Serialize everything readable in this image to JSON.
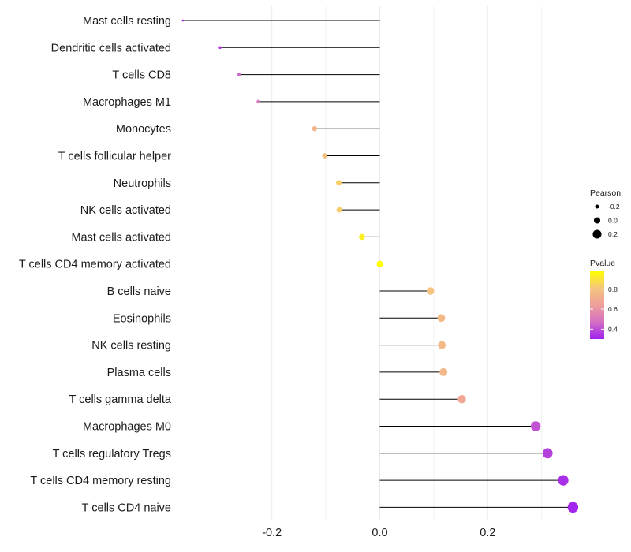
{
  "chart_data": {
    "type": "lollipop",
    "title": "",
    "xlabel": "",
    "ylabel": "",
    "xlim": [
      -0.375,
      0.375
    ],
    "x_ticks": [
      -0.2,
      0.0,
      0.2
    ],
    "x_tick_labels": [
      "-0.2",
      "0.0",
      "0.2"
    ],
    "grid": true,
    "legend_position": "right",
    "points": [
      {
        "label": "Mast cells resting",
        "value": -0.365,
        "pvalue": 0.3
      },
      {
        "label": "Dendritic cells activated",
        "value": -0.296,
        "pvalue": 0.36
      },
      {
        "label": "T cells CD8",
        "value": -0.261,
        "pvalue": 0.45
      },
      {
        "label": "Macrophages M1",
        "value": -0.225,
        "pvalue": 0.5
      },
      {
        "label": "Monocytes",
        "value": -0.121,
        "pvalue": 0.74
      },
      {
        "label": "T cells follicular helper",
        "value": -0.102,
        "pvalue": 0.79
      },
      {
        "label": "Neutrophils",
        "value": -0.076,
        "pvalue": 0.84
      },
      {
        "label": "NK cells activated",
        "value": -0.075,
        "pvalue": 0.84
      },
      {
        "label": "Mast cells activated",
        "value": -0.033,
        "pvalue": 0.93
      },
      {
        "label": "T cells CD4 memory activated",
        "value": 0.0,
        "pvalue": 0.99
      },
      {
        "label": "B cells naive",
        "value": 0.094,
        "pvalue": 0.8
      },
      {
        "label": "Eosinophils",
        "value": 0.114,
        "pvalue": 0.76
      },
      {
        "label": "NK cells resting",
        "value": 0.115,
        "pvalue": 0.76
      },
      {
        "label": "Plasma cells",
        "value": 0.118,
        "pvalue": 0.75
      },
      {
        "label": "T cells gamma delta",
        "value": 0.152,
        "pvalue": 0.68
      },
      {
        "label": "Macrophages M0",
        "value": 0.289,
        "pvalue": 0.41
      },
      {
        "label": "T cells regulatory  Tregs ",
        "value": 0.311,
        "pvalue": 0.37
      },
      {
        "label": "T cells CD4 memory resting",
        "value": 0.34,
        "pvalue": 0.33
      },
      {
        "label": "T cells CD4 naive",
        "value": 0.358,
        "pvalue": 0.31
      }
    ],
    "legend_size": {
      "title": "Pearson",
      "entries": [
        {
          "label": "-0.2",
          "value": -0.2
        },
        {
          "label": "0.0",
          "value": 0.0
        },
        {
          "label": "0.2",
          "value": 0.2
        }
      ]
    },
    "legend_color": {
      "title": "Pvalue",
      "range": [
        0.3,
        0.98
      ],
      "ticks": [
        {
          "label": "0.8",
          "value": 0.8
        },
        {
          "label": "0.6",
          "value": 0.6
        },
        {
          "label": "0.4",
          "value": 0.4
        }
      ],
      "colors": [
        "#A020F0",
        "#D36FC3",
        "#EF9E9C",
        "#F5C47E",
        "#FFFF00"
      ]
    },
    "line_color": "#000000",
    "grid_color": "#EBEBEB"
  }
}
